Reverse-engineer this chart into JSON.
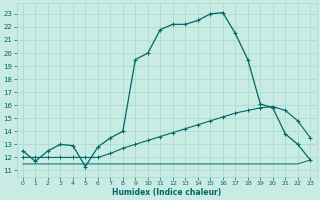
{
  "xlabel": "Humidex (Indice chaleur)",
  "bg_color": "#c8ebe3",
  "line_color": "#006666",
  "grid_color": "#a8d8d0",
  "xlim": [
    -0.5,
    23.5
  ],
  "ylim": [
    10.5,
    23.8
  ],
  "yticks": [
    11,
    12,
    13,
    14,
    15,
    16,
    17,
    18,
    19,
    20,
    21,
    22,
    23
  ],
  "xticks": [
    0,
    1,
    2,
    3,
    4,
    5,
    6,
    7,
    8,
    9,
    10,
    11,
    12,
    13,
    14,
    15,
    16,
    17,
    18,
    19,
    20,
    21,
    22,
    23
  ],
  "curve1_x": [
    0,
    1,
    2,
    3,
    4,
    5,
    6,
    7,
    8,
    9,
    10,
    11,
    12,
    13,
    14,
    15,
    16,
    17,
    18,
    19,
    20,
    21,
    22,
    23
  ],
  "curve1_y": [
    12.5,
    11.7,
    12.5,
    13.0,
    12.9,
    11.3,
    12.8,
    13.5,
    14.0,
    19.5,
    20.0,
    21.8,
    22.2,
    22.2,
    22.5,
    23.0,
    23.1,
    21.5,
    19.5,
    16.1,
    15.8,
    13.8,
    13.0,
    11.8
  ],
  "curve2_x": [
    0,
    1,
    2,
    3,
    4,
    5,
    6,
    7,
    8,
    9,
    10,
    11,
    12,
    13,
    14,
    15,
    16,
    17,
    18,
    19,
    20,
    21,
    22,
    23
  ],
  "curve2_y": [
    12.0,
    12.0,
    12.0,
    12.0,
    12.0,
    12.0,
    12.0,
    12.3,
    12.7,
    13.0,
    13.3,
    13.6,
    13.9,
    14.2,
    14.5,
    14.8,
    15.1,
    15.4,
    15.6,
    15.8,
    15.9,
    15.6,
    14.8,
    13.5
  ],
  "curve3_x": [
    0,
    1,
    2,
    3,
    4,
    5,
    6,
    7,
    8,
    9,
    10,
    11,
    12,
    13,
    14,
    15,
    16,
    17,
    18,
    19,
    20,
    21,
    22,
    23
  ],
  "curve3_y": [
    11.5,
    11.5,
    11.5,
    11.5,
    11.5,
    11.5,
    11.5,
    11.5,
    11.5,
    11.5,
    11.5,
    11.5,
    11.5,
    11.5,
    11.5,
    11.5,
    11.5,
    11.5,
    11.5,
    11.5,
    11.5,
    11.5,
    11.5,
    11.8
  ]
}
